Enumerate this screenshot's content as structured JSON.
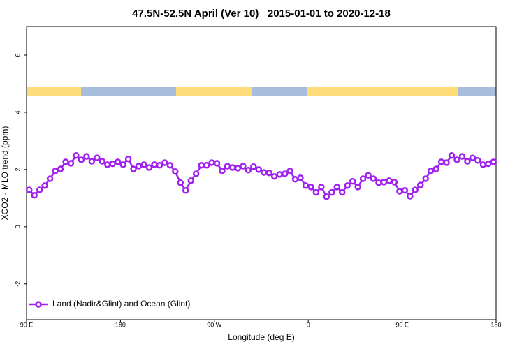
{
  "chart_data": {
    "type": "line",
    "title": "47.5N-52.5N April (Ver 10)   2015-01-01 to 2020-12-18",
    "x_label": "Longitude (deg E)",
    "y_label": "XCO2 - MLO trend (ppm)",
    "x": [
      92.5,
      97.5,
      102.5,
      107.5,
      112.5,
      117.5,
      122.5,
      127.5,
      132.5,
      137.5,
      142.5,
      147.5,
      152.5,
      157.5,
      162.5,
      167.5,
      172.5,
      177.5,
      182.5,
      187.5,
      192.5,
      197.5,
      202.5,
      207.5,
      212.5,
      217.5,
      222.5,
      227.5,
      232.5,
      237.5,
      242.5,
      247.5,
      252.5,
      257.5,
      262.5,
      267.5,
      272.5,
      277.5,
      282.5,
      287.5,
      292.5,
      297.5,
      302.5,
      307.5,
      312.5,
      317.5,
      322.5,
      327.5,
      332.5,
      337.5,
      342.5,
      347.5,
      352.5,
      357.5,
      362.5,
      367.5,
      372.5,
      377.5,
      382.5,
      387.5,
      392.5,
      397.5,
      402.5,
      407.5,
      412.5,
      417.5,
      422.5,
      427.5,
      432.5,
      437.5,
      442.5,
      447.5,
      452.5,
      457.5,
      462.5,
      467.5,
      472.5,
      477.5,
      482.5,
      487.5,
      492.5,
      497.5,
      502.5,
      507.5,
      512.5,
      517.5,
      522.5,
      527.5,
      532.5,
      537.5
    ],
    "series": [
      {
        "name": "Land (Nadir&Glint) and Ocean (Glint)",
        "color": "#a020f0",
        "values": [
          1.29,
          1.1,
          1.29,
          1.44,
          1.68,
          1.95,
          2.02,
          2.27,
          2.22,
          2.49,
          2.34,
          2.46,
          2.29,
          2.41,
          2.29,
          2.17,
          2.2,
          2.27,
          2.17,
          2.37,
          2.02,
          2.12,
          2.17,
          2.07,
          2.17,
          2.15,
          2.24,
          2.15,
          1.93,
          1.54,
          1.27,
          1.61,
          1.85,
          2.15,
          2.15,
          2.24,
          2.22,
          1.95,
          2.12,
          2.07,
          2.05,
          2.12,
          1.98,
          2.1,
          2.0,
          1.9,
          1.88,
          1.76,
          1.83,
          1.85,
          1.95,
          1.66,
          1.71,
          1.44,
          1.39,
          1.2,
          1.39,
          1.05,
          1.2,
          1.39,
          1.2,
          1.44,
          1.59,
          1.39,
          1.68,
          1.8,
          1.68,
          1.54,
          1.56,
          1.61,
          1.56,
          1.24,
          1.27,
          1.07,
          1.29,
          1.46,
          1.68,
          1.95,
          2.02,
          2.27,
          2.24,
          2.49,
          2.34,
          2.46,
          2.29,
          2.41,
          2.32,
          2.17,
          2.2,
          2.27
        ]
      }
    ],
    "xlim": [
      90,
      540
    ],
    "xticks": [
      {
        "value": 90,
        "label": "90 E"
      },
      180,
      {
        "value": 270,
        "label": "90 W"
      },
      {
        "value": 360,
        "label": "0"
      },
      {
        "value": 450,
        "label": "90 E"
      },
      {
        "value": 540,
        "label": "180"
      }
    ],
    "ylim": [
      -3.25,
      7.0
    ],
    "yticks": [
      -2,
      0,
      2,
      4,
      6
    ],
    "grid": false,
    "legend": "bottom-left"
  }
}
